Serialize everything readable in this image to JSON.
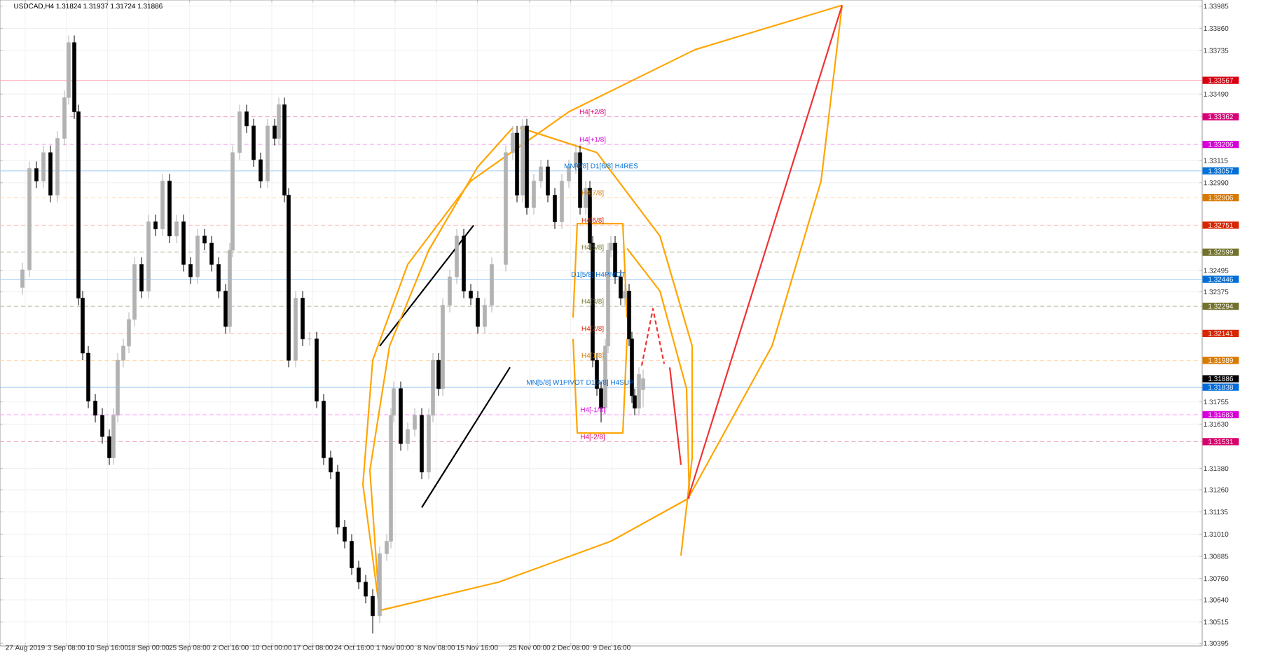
{
  "chart_data": {
    "type": "candlestick",
    "title": "USDCAD,H4  1.31824 1.31937 1.31724 1.31886",
    "x": [
      "2019-08-26T12:00",
      "2019-08-27T18:00",
      "2019-08-29T00:00",
      "2019-08-30T06:00",
      "2019-08-31T12:00",
      "2019-09-01T18:00",
      "2019-09-03T00:00",
      "2019-09-03T18:00",
      "2019-09-04T18:00",
      "2019-09-05T12:00",
      "2019-09-06T06:00",
      "2019-09-07T06:00",
      "2019-09-08T12:00",
      "2019-09-09T18:00",
      "2019-09-11T00:00",
      "2019-09-11T18:00",
      "2019-09-12T12:00",
      "2019-09-13T12:00",
      "2019-09-14T12:00",
      "2019-09-15T12:00",
      "2019-09-16T18:00",
      "2019-09-18T00:00",
      "2019-09-19T06:00",
      "2019-09-20T12:00",
      "2019-09-21T18:00",
      "2019-09-23T00:00",
      "2019-09-24T06:00",
      "2019-09-25T12:00",
      "2019-09-26T18:00",
      "2019-09-28T00:00",
      "2019-09-29T06:00",
      "2019-09-30T12:00",
      "2019-10-01T18:00",
      "2019-10-02T12:00",
      "2019-10-03T00:00",
      "2019-10-04T06:00",
      "2019-10-05T12:00",
      "2019-10-06T18:00",
      "2019-10-08T00:00",
      "2019-10-09T06:00",
      "2019-10-10T12:00",
      "2019-10-11T06:00",
      "2019-10-12T06:00",
      "2019-10-13T00:00",
      "2019-10-14T06:00",
      "2019-10-15T12:00",
      "2019-10-16T18:00",
      "2019-10-18T00:00",
      "2019-10-19T06:00",
      "2019-10-20T12:00",
      "2019-10-21T18:00",
      "2019-10-23T00:00",
      "2019-10-24T06:00",
      "2019-10-25T12:00",
      "2019-10-26T18:00",
      "2019-10-28T00:00",
      "2019-10-29T06:00",
      "2019-10-30T12:00",
      "2019-10-31T06:00",
      "2019-10-31T18:00",
      "2019-11-02T00:00",
      "2019-11-03T06:00",
      "2019-11-04T12:00",
      "2019-11-05T18:00",
      "2019-11-07T00:00",
      "2019-11-07T18:00",
      "2019-11-08T18:00",
      "2019-11-09T12:00",
      "2019-11-10T18:00",
      "2019-11-12T00:00",
      "2019-11-13T06:00",
      "2019-11-14T12:00",
      "2019-11-15T18:00",
      "2019-11-17T00:00",
      "2019-11-18T06:00",
      "2019-11-20T18:00",
      "2019-11-22T00:00",
      "2019-11-22T18:00",
      "2019-11-23T18:00",
      "2019-11-24T12:00",
      "2019-11-25T18:00",
      "2019-11-27T00:00",
      "2019-11-28T06:00",
      "2019-11-29T12:00",
      "2019-11-30T18:00",
      "2019-12-02T00:00",
      "2019-12-03T06:00",
      "2019-12-04T00:00",
      "2019-12-05T00:00",
      "2019-12-05T18:00",
      "2019-12-06T06:00",
      "2019-12-07T00:00",
      "2019-12-07T18:00",
      "2019-12-08T12:00",
      "2019-12-09T00:00",
      "2019-12-09T12:00",
      "2019-12-10T06:00",
      "2019-12-11T06:00",
      "2019-12-12T00:00",
      "2019-12-12T18:00",
      "2019-12-13T06:00",
      "2019-12-13T18:00",
      "2019-12-14T12:00",
      "2019-12-15T06:00"
    ],
    "ohlc": [
      [
        1.324,
        1.3254,
        1.3236,
        1.325
      ],
      [
        1.325,
        1.3311,
        1.3246,
        1.3307
      ],
      [
        1.3307,
        1.3311,
        1.3296,
        1.33
      ],
      [
        1.33,
        1.332,
        1.3296,
        1.3316
      ],
      [
        1.3316,
        1.332,
        1.3288,
        1.3292
      ],
      [
        1.3292,
        1.3328,
        1.3288,
        1.3324
      ],
      [
        1.3324,
        1.3351,
        1.332,
        1.3347
      ],
      [
        1.3347,
        1.3382,
        1.3343,
        1.3378
      ],
      [
        1.3378,
        1.3382,
        1.3335,
        1.3339
      ],
      [
        1.3339,
        1.3343,
        1.323,
        1.3234
      ],
      [
        1.3234,
        1.3238,
        1.3199,
        1.3203
      ],
      [
        1.3203,
        1.3207,
        1.3172,
        1.3176
      ],
      [
        1.3176,
        1.318,
        1.3164,
        1.3168
      ],
      [
        1.3168,
        1.3172,
        1.3152,
        1.3156
      ],
      [
        1.3156,
        1.316,
        1.314,
        1.3144
      ],
      [
        1.3144,
        1.3172,
        1.314,
        1.3168
      ],
      [
        1.3168,
        1.3203,
        1.3164,
        1.3199
      ],
      [
        1.3199,
        1.3211,
        1.3195,
        1.3207
      ],
      [
        1.3207,
        1.3226,
        1.3203,
        1.3222
      ],
      [
        1.3222,
        1.3257,
        1.3218,
        1.3253
      ],
      [
        1.3253,
        1.3257,
        1.3234,
        1.3238
      ],
      [
        1.3238,
        1.3281,
        1.3234,
        1.3277
      ],
      [
        1.3277,
        1.3281,
        1.3269,
        1.3273
      ],
      [
        1.3273,
        1.3304,
        1.3269,
        1.33
      ],
      [
        1.33,
        1.3304,
        1.3265,
        1.3269
      ],
      [
        1.3269,
        1.3281,
        1.3265,
        1.3277
      ],
      [
        1.3277,
        1.3281,
        1.3249,
        1.3253
      ],
      [
        1.3253,
        1.3257,
        1.3242,
        1.3246
      ],
      [
        1.3246,
        1.3273,
        1.3242,
        1.3269
      ],
      [
        1.3269,
        1.3273,
        1.3261,
        1.3265
      ],
      [
        1.3265,
        1.3269,
        1.3249,
        1.3253
      ],
      [
        1.3253,
        1.3257,
        1.3234,
        1.3238
      ],
      [
        1.3238,
        1.3242,
        1.3214,
        1.3218
      ],
      [
        1.3218,
        1.3265,
        1.3214,
        1.3261
      ],
      [
        1.3261,
        1.332,
        1.3257,
        1.3316
      ],
      [
        1.3316,
        1.3343,
        1.3312,
        1.3339
      ],
      [
        1.3339,
        1.3343,
        1.3327,
        1.3331
      ],
      [
        1.3331,
        1.3335,
        1.3308,
        1.3312
      ],
      [
        1.3312,
        1.3316,
        1.3296,
        1.33
      ],
      [
        1.33,
        1.3335,
        1.3296,
        1.3331
      ],
      [
        1.3331,
        1.3335,
        1.332,
        1.3324
      ],
      [
        1.3324,
        1.3347,
        1.332,
        1.3343
      ],
      [
        1.3343,
        1.3347,
        1.3288,
        1.3292
      ],
      [
        1.3292,
        1.3296,
        1.3195,
        1.3199
      ],
      [
        1.3199,
        1.3238,
        1.3195,
        1.3234
      ],
      [
        1.3234,
        1.3238,
        1.3207,
        1.3211
      ],
      [
        1.3211,
        1.3215,
        1.3207,
        1.3211
      ],
      [
        1.3211,
        1.3215,
        1.3172,
        1.3176
      ],
      [
        1.3176,
        1.318,
        1.314,
        1.3144
      ],
      [
        1.3144,
        1.3148,
        1.3132,
        1.3136
      ],
      [
        1.3136,
        1.314,
        1.3101,
        1.3105
      ],
      [
        1.3105,
        1.3109,
        1.3093,
        1.3097
      ],
      [
        1.3097,
        1.3101,
        1.3078,
        1.3082
      ],
      [
        1.3082,
        1.3086,
        1.307,
        1.3074
      ],
      [
        1.3074,
        1.3078,
        1.3062,
        1.3066
      ],
      [
        1.3066,
        1.307,
        1.3045,
        1.3055
      ],
      [
        1.3055,
        1.3094,
        1.3051,
        1.309
      ],
      [
        1.309,
        1.3101,
        1.3086,
        1.3097
      ],
      [
        1.3097,
        1.3172,
        1.3093,
        1.3168
      ],
      [
        1.3168,
        1.3187,
        1.3164,
        1.3183
      ],
      [
        1.3183,
        1.3187,
        1.3148,
        1.3152
      ],
      [
        1.3152,
        1.3164,
        1.3148,
        1.316
      ],
      [
        1.316,
        1.3172,
        1.3156,
        1.3168
      ],
      [
        1.3168,
        1.3172,
        1.3132,
        1.3136
      ],
      [
        1.3136,
        1.3172,
        1.3132,
        1.3168
      ],
      [
        1.3168,
        1.3203,
        1.3164,
        1.3199
      ],
      [
        1.3199,
        1.3203,
        1.3179,
        1.3183
      ],
      [
        1.3183,
        1.3234,
        1.3179,
        1.323
      ],
      [
        1.323,
        1.325,
        1.3226,
        1.3246
      ],
      [
        1.3246,
        1.3273,
        1.3242,
        1.3269
      ],
      [
        1.3269,
        1.3273,
        1.3234,
        1.3238
      ],
      [
        1.3238,
        1.3242,
        1.323,
        1.3234
      ],
      [
        1.3234,
        1.3238,
        1.3214,
        1.3218
      ],
      [
        1.3218,
        1.3234,
        1.3214,
        1.323
      ],
      [
        1.323,
        1.3257,
        1.3226,
        1.3253
      ],
      [
        1.3253,
        1.332,
        1.3249,
        1.3316
      ],
      [
        1.3316,
        1.3331,
        1.3312,
        1.3327
      ],
      [
        1.3327,
        1.3331,
        1.3288,
        1.3292
      ],
      [
        1.3292,
        1.3335,
        1.3288,
        1.3331
      ],
      [
        1.3331,
        1.3335,
        1.3281,
        1.3285
      ],
      [
        1.3285,
        1.3304,
        1.3281,
        1.33
      ],
      [
        1.33,
        1.3312,
        1.3296,
        1.3308
      ],
      [
        1.3308,
        1.3312,
        1.3288,
        1.3292
      ],
      [
        1.3292,
        1.3296,
        1.3273,
        1.3277
      ],
      [
        1.3277,
        1.3304,
        1.3273,
        1.33
      ],
      [
        1.33,
        1.3312,
        1.3296,
        1.3308
      ],
      [
        1.3308,
        1.332,
        1.3304,
        1.3316
      ],
      [
        1.3316,
        1.332,
        1.3281,
        1.3285
      ],
      [
        1.3285,
        1.33,
        1.3281,
        1.3296
      ],
      [
        1.3296,
        1.33,
        1.3261,
        1.3265
      ],
      [
        1.3265,
        1.3269,
        1.3195,
        1.3199
      ],
      [
        1.3199,
        1.3203,
        1.3179,
        1.3183
      ],
      [
        1.3183,
        1.3187,
        1.3164,
        1.3172
      ],
      [
        1.3172,
        1.3211,
        1.3168,
        1.3207
      ],
      [
        1.3207,
        1.3265,
        1.3203,
        1.3261
      ],
      [
        1.3261,
        1.3269,
        1.3257,
        1.3265
      ],
      [
        1.3265,
        1.3269,
        1.3242,
        1.3246
      ],
      [
        1.3246,
        1.325,
        1.323,
        1.3234
      ],
      [
        1.3234,
        1.3242,
        1.323,
        1.3238
      ],
      [
        1.3238,
        1.3242,
        1.3207,
        1.3211
      ],
      [
        1.3211,
        1.3215,
        1.3175,
        1.3179
      ],
      [
        1.3179,
        1.3183,
        1.3168,
        1.3172
      ],
      [
        1.3172,
        1.3195,
        1.3168,
        1.3191
      ],
      [
        1.31824,
        1.31937,
        1.31724,
        1.31886
      ]
    ],
    "series": [
      {
        "type": "line",
        "color": "#000000",
        "x": [
          "2019-10-29T06:00",
          "2019-11-15T00:00"
        ],
        "values": [
          1.3207,
          1.3275
        ]
      },
      {
        "type": "line",
        "color": "#000000",
        "x": [
          "2019-11-05T18:00",
          "2019-11-21T12:00"
        ],
        "values": [
          1.3116,
          1.3195
        ]
      },
      {
        "type": "line",
        "color": "#ffa500",
        "x": [
          "2019-10-29T06:00",
          "2019-10-26T06:00",
          "2019-10-28T00:00",
          "2019-11-03T06:00",
          "2019-11-14T12:00",
          "2019-12-02T00:00",
          "2019-12-24T12:00",
          "2020-01-19T18:00"
        ],
        "values": [
          1.3058,
          1.3129,
          1.3199,
          1.3253,
          1.33,
          1.3339,
          1.3374,
          1.3399
        ]
      },
      {
        "type": "line",
        "color": "#ffa500",
        "x": [
          "2019-10-29T06:00",
          "2019-10-27T12:00",
          "2019-10-31T00:00",
          "2019-11-07T00:00",
          "2019-11-15T18:00",
          "2019-11-22T00:00"
        ],
        "values": [
          1.3058,
          1.3137,
          1.3207,
          1.3261,
          1.3308,
          1.333
        ]
      },
      {
        "type": "line",
        "color": "#ffa500",
        "x": [
          "2019-11-23T06:00",
          "2019-12-07T00:00",
          "2019-12-18T06:00",
          "2019-12-24T00:00",
          "2019-12-24T00:00",
          "2019-12-22T00:00"
        ],
        "values": [
          1.333,
          1.3316,
          1.3269,
          1.3207,
          1.3144,
          1.3089
        ]
      },
      {
        "type": "line",
        "color": "#ffa500",
        "x": [
          "2019-10-29T06:00",
          "2019-11-19T12:00",
          "2019-12-09T12:00",
          "2019-12-23T06:00"
        ],
        "values": [
          1.3058,
          1.3074,
          1.3097,
          1.3121
        ]
      },
      {
        "type": "line",
        "color": "#ffa500",
        "x": [
          "2019-12-23T06:00",
          "2020-01-07T06:00",
          "2020-01-16T00:00",
          "2020-01-19T18:00"
        ],
        "values": [
          1.3121,
          1.3207,
          1.33,
          1.3399
        ]
      },
      {
        "type": "line",
        "color": "#ffa500",
        "x": [
          "2019-12-02T18:00",
          "2019-12-03T12:00",
          "2019-12-11T15:00",
          "2019-12-12T09:00"
        ],
        "values": [
          1.3223,
          1.3276,
          1.3276,
          1.3223
        ]
      },
      {
        "type": "line",
        "color": "#ffa500",
        "x": [
          "2019-12-12T09:00",
          "2019-12-18T06:00",
          "2019-12-23T00:00",
          "2019-12-23T12:00"
        ],
        "values": [
          1.3262,
          1.3238,
          1.3183,
          1.3121
        ]
      },
      {
        "type": "line",
        "color": "#ffa500",
        "x": [
          "2019-12-02T18:00",
          "2019-12-03T12:00",
          "2019-12-11T15:00",
          "2019-12-12T09:00"
        ],
        "values": [
          1.3211,
          1.3158,
          1.3158,
          1.3211
        ]
      },
      {
        "type": "line",
        "color": "#ee3333",
        "x": [
          "2019-12-23T06:00",
          "2020-01-19T18:00"
        ],
        "values": [
          1.3121,
          1.3399
        ]
      },
      {
        "type": "line",
        "color": "#ee3333",
        "line_style": "dashed",
        "x": [
          "2019-12-15T00:00",
          "2019-12-17T00:00",
          "2019-12-19T00:00"
        ],
        "values": [
          1.3196,
          1.3228,
          1.3197
        ]
      },
      {
        "type": "line",
        "color": "#ee3333",
        "x": [
          "2019-12-20T00:00",
          "2019-12-22T00:00"
        ],
        "values": [
          1.3195,
          1.314
        ]
      }
    ],
    "xlim": [
      "2019-08-22T12:00",
      "2020-03-24T00:00"
    ],
    "ylim": [
      1.3038,
      1.3402
    ],
    "xticks": [
      {
        "value": "2019-08-27",
        "label": "27 Aug 2019"
      },
      {
        "value": "2019-09-03T08:00",
        "label": "3 Sep 08:00"
      },
      {
        "value": "2019-09-10T16:00",
        "label": "10 Sep 16:00"
      },
      {
        "value": "2019-09-18T00:00",
        "label": "18 Sep 00:00"
      },
      {
        "value": "2019-09-25T08:00",
        "label": "25 Sep 08:00"
      },
      {
        "value": "2019-10-02T16:00",
        "label": "2 Oct 16:00"
      },
      {
        "value": "2019-10-10T00:00",
        "label": "10 Oct 00:00"
      },
      {
        "value": "2019-10-17T08:00",
        "label": "17 Oct 08:00"
      },
      {
        "value": "2019-10-24T16:00",
        "label": "24 Oct 16:00"
      },
      {
        "value": "2019-11-01T00:00",
        "label": "1 Nov 00:00"
      },
      {
        "value": "2019-11-08T08:00",
        "label": "8 Nov 08:00"
      },
      {
        "value": "2019-11-15T16:00",
        "label": "15 Nov 16:00"
      },
      {
        "value": "2019-11-25T00:00",
        "label": "25 Nov 00:00"
      },
      {
        "value": "2019-12-02T08:00",
        "label": "2 Dec 08:00"
      },
      {
        "value": "2019-12-09T16:00",
        "label": "9 Dec 16:00"
      }
    ],
    "yticks": [
      {
        "value": 1.33985,
        "label": "1.33985"
      },
      {
        "value": 1.3386,
        "label": "1.33860"
      },
      {
        "value": 1.33735,
        "label": "1.33735"
      },
      {
        "value": 1.3349,
        "label": "1.33490"
      },
      {
        "value": 1.33115,
        "label": "1.33115"
      },
      {
        "value": 1.3299,
        "label": "1.32990"
      },
      {
        "value": 1.32495,
        "label": "1.32495"
      },
      {
        "value": 1.32375,
        "label": "1.32375"
      },
      {
        "value": 1.31755,
        "label": "1.31755"
      },
      {
        "value": 1.3163,
        "label": "1.31630"
      },
      {
        "value": 1.3138,
        "label": "1.31380"
      },
      {
        "value": 1.3126,
        "label": "1.31260"
      },
      {
        "value": 1.31135,
        "label": "1.31135"
      },
      {
        "value": 1.3101,
        "label": "1.31010"
      },
      {
        "value": 1.30885,
        "label": "1.30885"
      },
      {
        "value": 1.3076,
        "label": "1.30760"
      },
      {
        "value": 1.3064,
        "label": "1.30640"
      },
      {
        "value": 1.30515,
        "label": "1.30515"
      },
      {
        "value": 1.30395,
        "label": "1.30395"
      }
    ],
    "grid": true,
    "ref_lines": [
      {
        "axis": "y",
        "value": 1.33567,
        "label": "1.33567",
        "color": "#ffa0a8",
        "line_style": "solid"
      },
      {
        "axis": "y",
        "value": 1.33362,
        "label": "1.33362",
        "color": "#e8a0c8",
        "line_style": "dashed"
      },
      {
        "axis": "y",
        "value": 1.33206,
        "label": "1.33206",
        "color": "#f0a0f0",
        "line_style": "dashed"
      },
      {
        "axis": "y",
        "value": 1.33057,
        "label": "1.33057",
        "color": "#a0ccf5",
        "line_style": "solid"
      },
      {
        "axis": "y",
        "value": 1.32906,
        "label": "1.32906",
        "color": "#ffd9a8",
        "line_style": "dashed"
      },
      {
        "axis": "y",
        "value": 1.32751,
        "label": "1.32751",
        "color": "#ffb8a8",
        "line_style": "dashed"
      },
      {
        "axis": "y",
        "value": 1.32599,
        "label": "1.32599",
        "color": "#b8b8a0",
        "line_style": "dashed"
      },
      {
        "axis": "y",
        "value": 1.32446,
        "label": "1.32446",
        "color": "#a0ccf5",
        "line_style": "solid"
      },
      {
        "axis": "y",
        "value": 1.32294,
        "label": "1.32294",
        "color": "#b8b8a0",
        "line_style": "dashed"
      },
      {
        "axis": "y",
        "value": 1.32141,
        "label": "1.32141",
        "color": "#ffb8a8",
        "line_style": "dashed"
      },
      {
        "axis": "y",
        "value": 1.31989,
        "label": "1.31989",
        "color": "#ffd9a8",
        "line_style": "dashed"
      },
      {
        "axis": "y",
        "value": 1.31838,
        "label": "1.31838",
        "color": "#80b8f0",
        "line_style": "solid"
      },
      {
        "axis": "y",
        "value": 1.31683,
        "label": "1.31683",
        "color": "#ffa0ff",
        "line_style": "dashed"
      },
      {
        "axis": "y",
        "value": 1.31531,
        "label": "1.31531",
        "color": "#e898c0",
        "line_style": "dashed"
      }
    ],
    "annotations": [
      {
        "text": "H4[+2/8]",
        "x": "2019-12-06T06:00",
        "y": 1.33362
      },
      {
        "text": "H4[+1/8]",
        "x": "2019-12-06T06:00",
        "y": 1.33206
      },
      {
        "text": "MN[6/8] D1[6/8] H4RES",
        "x": "2019-12-07T18:00",
        "y": 1.33057
      },
      {
        "text": "H4[7/8]",
        "x": "2019-12-06T06:00",
        "y": 1.32906
      },
      {
        "text": "H4[6/8]",
        "x": "2019-12-06T06:00",
        "y": 1.32751
      },
      {
        "text": "H4[5/8]",
        "x": "2019-12-06T06:00",
        "y": 1.32599
      },
      {
        "text": "D1[5/8] H4PIVOT",
        "x": "2019-12-07T06:00",
        "y": 1.32446
      },
      {
        "text": "H4[3/8]",
        "x": "2019-12-06T06:00",
        "y": 1.32294
      },
      {
        "text": "H4[2/8]",
        "x": "2019-12-06T06:00",
        "y": 1.32141
      },
      {
        "text": "H4[1/8]",
        "x": "2019-12-06T06:00",
        "y": 1.31989
      },
      {
        "text": "MN[5/8] W1PIVOT D1[4/8] H4SUP",
        "x": "2019-12-04T00:00",
        "y": 1.31838
      },
      {
        "text": "H4[-1/8]",
        "x": "2019-12-06T06:00",
        "y": 1.31683
      },
      {
        "text": "H4[-2/8]",
        "x": "2019-12-06T06:00",
        "y": 1.31531
      },
      "1.31886"
    ]
  }
}
